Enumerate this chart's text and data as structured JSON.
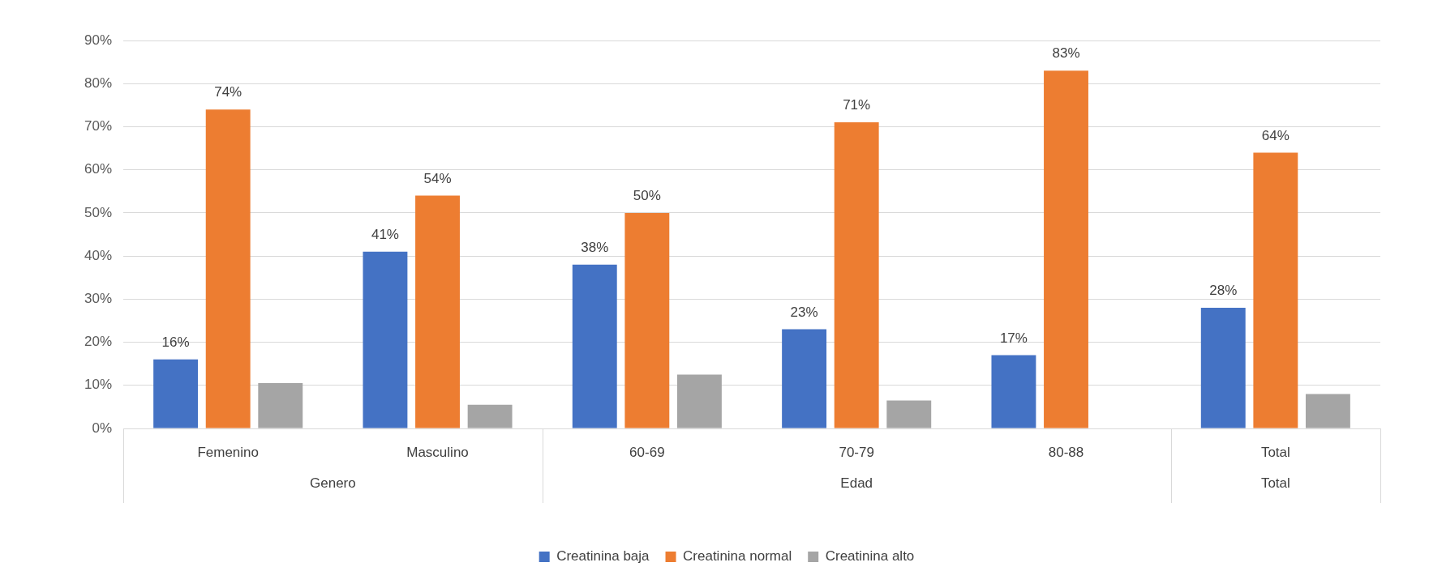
{
  "chart_data": {
    "type": "bar",
    "categories": [
      "Femenino",
      "Masculino",
      "60-69",
      "70-79",
      "80-88",
      "Total"
    ],
    "series": [
      {
        "name": "Creatinina baja",
        "color": "#4472c4",
        "values": [
          16,
          41,
          38,
          23,
          17,
          28
        ],
        "value_labels": [
          "16%",
          "41%",
          "38%",
          "23%",
          "17%",
          "28%"
        ]
      },
      {
        "name": "Creatinina normal",
        "color": "#ed7d31",
        "values": [
          74,
          54,
          50,
          71,
          83,
          64
        ],
        "value_labels": [
          "74%",
          "54%",
          "50%",
          "71%",
          "83%",
          "64%"
        ]
      },
      {
        "name": "Creatinina alto",
        "color": "#a5a5a5",
        "values": [
          10.5,
          5.5,
          12.5,
          6.5,
          0,
          8
        ]
      }
    ],
    "ylim": [
      0,
      90
    ],
    "yticks": [
      {
        "value": 0,
        "label": "0%"
      },
      {
        "value": 10,
        "label": "10%"
      },
      {
        "value": 20,
        "label": "20%"
      },
      {
        "value": 30,
        "label": "30%"
      },
      {
        "value": 40,
        "label": "40%"
      },
      {
        "value": 50,
        "label": "50%"
      },
      {
        "value": 60,
        "label": "60%"
      },
      {
        "value": 70,
        "label": "70%"
      },
      {
        "value": 80,
        "label": "80%"
      },
      {
        "value": 90,
        "label": "90%"
      }
    ],
    "annotations": [
      "Genero",
      "Edad",
      "Total"
    ],
    "grid": "y",
    "legend": "bottom"
  }
}
